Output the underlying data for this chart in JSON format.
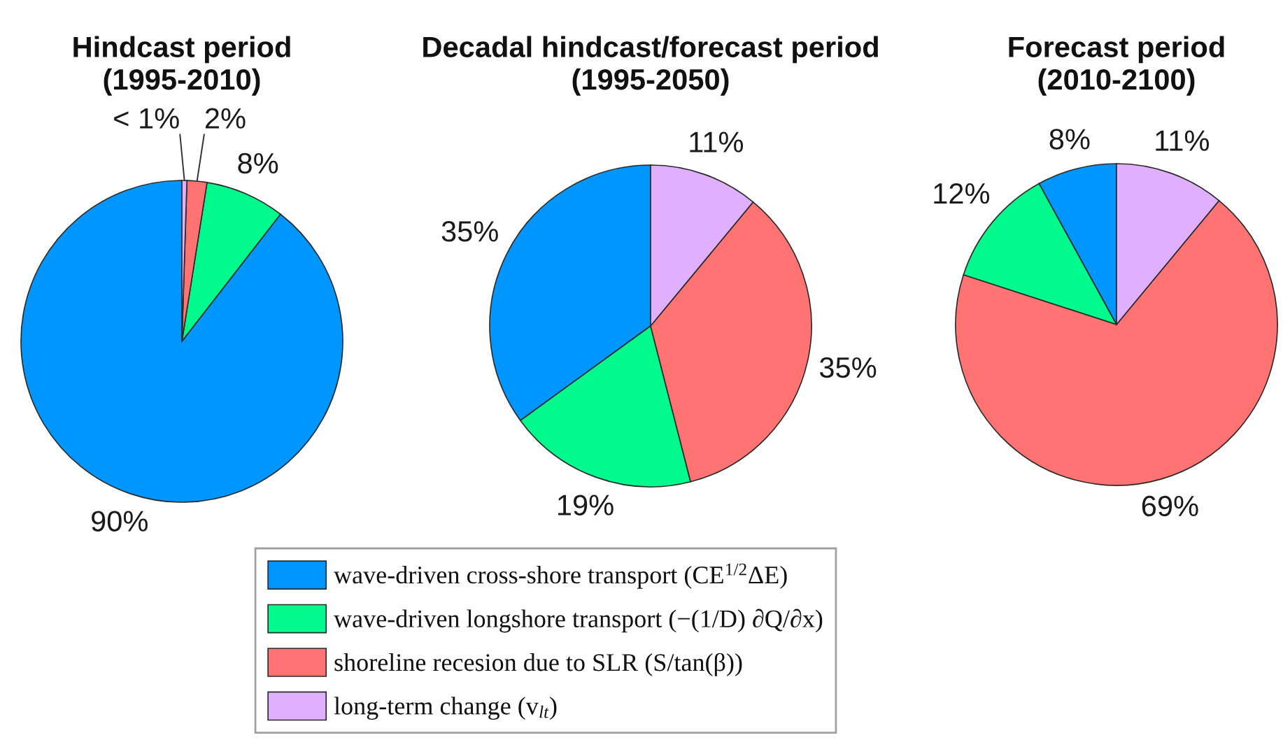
{
  "chart_data": [
    {
      "type": "pie",
      "title": "Hindcast period\n(1995-2010)",
      "categories": [
        "wave-driven cross-shore transport (CE$^{1/2}$ΔE)",
        "wave-driven longshore transport (−(1/D) ∂Q/∂x)",
        "shoreline recesion due to SLR (S/tan(β))",
        "long-term change (v$_{lt}$)"
      ],
      "values": [
        89.5,
        8,
        2,
        0.5
      ],
      "colors": [
        "#0096ff",
        "#00fa8c",
        "#ff7373",
        "#e0b0ff"
      ],
      "value_labels": [
        "90%",
        "8%",
        "2%",
        "< 1%"
      ],
      "legend": "bottom"
    },
    {
      "type": "pie",
      "title": "Decadal hindcast/forecast period\n(1995-2050)",
      "categories": [
        null,
        null,
        null,
        null
      ],
      "values": [
        35,
        19,
        35,
        11
      ],
      "colors": [
        "#0096ff",
        "#00fa8c",
        "#ff7373",
        "#e0b0ff"
      ],
      "value_labels": [
        "35%",
        "19%",
        "35%",
        "11%"
      ]
    },
    {
      "type": "pie",
      "title": "Forecast period\n(2010-2100)",
      "categories": [
        null,
        null,
        null,
        null
      ],
      "values": [
        8,
        12,
        69,
        11
      ],
      "colors": [
        "#0096ff",
        "#00fa8c",
        "#ff7373",
        "#e0b0ff"
      ],
      "value_labels": [
        "8%",
        "12%",
        "69%",
        "11%"
      ]
    }
  ]
}
